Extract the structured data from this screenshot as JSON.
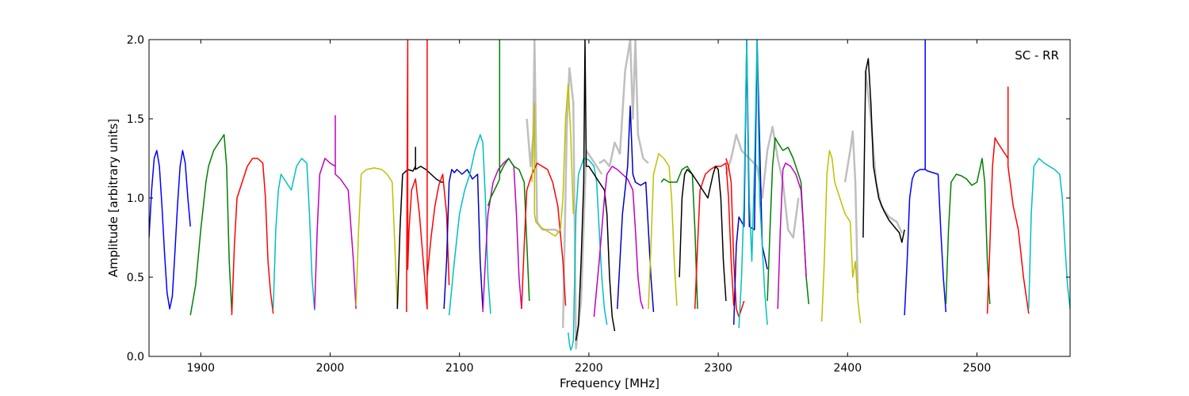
{
  "chart_data": {
    "type": "line",
    "title": "",
    "annotation": "SC - RR",
    "xlabel": "Frequency [MHz]",
    "ylabel": "Amplitude [arbitrary units]",
    "xlim": [
      1860,
      2572
    ],
    "ylim": [
      0,
      2.0
    ],
    "xticks": [
      1900,
      2000,
      2100,
      2200,
      2300,
      2400,
      2500
    ],
    "xtick_labels": [
      "1900",
      "2000",
      "2100",
      "2200",
      "2300",
      "2400",
      "2500"
    ],
    "yticks": [
      0,
      0.5,
      1.0,
      1.5,
      2.0
    ],
    "ytick_labels": [
      "0.0",
      "0.5",
      "1.0",
      "1.5",
      "2.0"
    ],
    "grid": false,
    "legend": "none",
    "background_series_color": "#bfbfbf",
    "background_series": [
      {
        "x": [
          2180,
          2183,
          2185,
          2188,
          2190,
          2194,
          2198,
          2202,
          2206,
          2210
        ],
        "y": [
          0.18,
          1.45,
          1.82,
          1.6,
          0.05,
          0.35,
          1.3,
          1.25,
          1.2,
          1.15
        ]
      },
      {
        "x": [
          2208,
          2212,
          2216,
          2220,
          2224,
          2228,
          2232,
          2234,
          2236,
          2238,
          2242,
          2246
        ],
        "y": [
          1.22,
          1.24,
          1.2,
          1.35,
          1.28,
          1.8,
          2.0,
          1.5,
          2.0,
          1.4,
          1.25,
          1.22
        ]
      },
      {
        "x": [
          2306,
          2310,
          2314,
          2318,
          2324,
          2330,
          2334,
          2338,
          2342,
          2346,
          2350,
          2354,
          2358,
          2362
        ],
        "y": [
          1.15,
          1.25,
          1.4,
          1.3,
          1.25,
          1.2,
          1.0,
          1.3,
          1.45,
          1.25,
          1.1,
          0.8,
          0.75,
          1.0
        ]
      },
      {
        "x": [
          2398,
          2402,
          2404,
          2406,
          2408
        ],
        "y": [
          1.1,
          1.3,
          1.42,
          1.1,
          0.4
        ]
      },
      {
        "x": [
          2414,
          2418,
          2422,
          2426,
          2432,
          2438,
          2442
        ],
        "y": [
          1.8,
          1.5,
          1.1,
          0.95,
          0.88,
          0.85,
          0.78
        ]
      },
      {
        "x": [
          2152,
          2155,
          2157,
          2158,
          2160,
          2164,
          2170,
          2174,
          2178
        ],
        "y": [
          1.5,
          1.2,
          1.4,
          2.0,
          0.85,
          0.8,
          0.8,
          0.8,
          0.78
        ]
      }
    ],
    "series": [
      {
        "color": "#0000ff",
        "x": [
          1860,
          1862,
          1864,
          1866,
          1868,
          1870,
          1872,
          1874,
          1876,
          1878,
          1880,
          1882,
          1884,
          1886,
          1888,
          1890,
          1892
        ],
        "y": [
          0.75,
          1.05,
          1.25,
          1.3,
          1.2,
          0.95,
          0.65,
          0.4,
          0.3,
          0.38,
          0.65,
          0.95,
          1.2,
          1.3,
          1.22,
          1.0,
          0.82
        ]
      },
      {
        "color": "#007f00",
        "x": [
          1892,
          1896,
          1900,
          1904,
          1906,
          1910,
          1914,
          1918,
          1920,
          1922,
          1924
        ],
        "y": [
          0.26,
          0.45,
          0.8,
          1.1,
          1.2,
          1.3,
          1.35,
          1.4,
          1.2,
          0.6,
          0.28
        ]
      },
      {
        "color": "#ff0000",
        "x": [
          1924,
          1926,
          1928,
          1932,
          1936,
          1940,
          1944,
          1948,
          1950,
          1952,
          1954,
          1956
        ],
        "y": [
          0.26,
          0.7,
          1.0,
          1.1,
          1.2,
          1.25,
          1.25,
          1.22,
          1.0,
          0.6,
          0.4,
          0.27
        ]
      },
      {
        "color": "#00bfbf",
        "x": [
          1956,
          1958,
          1960,
          1962,
          1966,
          1970,
          1974,
          1978,
          1982,
          1984,
          1986,
          1988
        ],
        "y": [
          0.3,
          0.8,
          1.05,
          1.15,
          1.1,
          1.05,
          1.2,
          1.25,
          1.22,
          0.9,
          0.5,
          0.29
        ]
      },
      {
        "color": "#bf00bf",
        "x": [
          1988,
          1990,
          1992,
          1996,
          2000,
          2004,
          2004,
          2004,
          2008,
          2014,
          2018,
          2020
        ],
        "y": [
          0.3,
          0.8,
          1.15,
          1.25,
          1.22,
          1.2,
          1.52,
          1.15,
          1.12,
          1.05,
          0.6,
          0.3
        ]
      },
      {
        "color": "#bfbf00",
        "x": [
          2020,
          2022,
          2024,
          2028,
          2034,
          2040,
          2044,
          2048,
          2050,
          2052
        ],
        "y": [
          0.32,
          0.8,
          1.15,
          1.18,
          1.19,
          1.18,
          1.15,
          1.1,
          0.7,
          0.3
        ]
      },
      {
        "color": "#000000",
        "x": [
          2052,
          2054,
          2056,
          2060,
          2064,
          2066,
          2066,
          2066,
          2070,
          2074,
          2078,
          2082,
          2086,
          2088
        ],
        "y": [
          0.3,
          0.8,
          1.15,
          1.18,
          1.17,
          1.2,
          1.32,
          1.18,
          1.2,
          1.18,
          1.15,
          1.12,
          1.1,
          1.1
        ]
      },
      {
        "color": "#ff0000",
        "x": [
          2059,
          2060,
          2060,
          2061,
          2063,
          2066,
          2069,
          2072,
          2075,
          2075,
          2075,
          2078,
          2081,
          2084,
          2087,
          2090,
          2092
        ],
        "y": [
          0.28,
          2.0,
          0.55,
          0.8,
          1.05,
          1.12,
          0.9,
          0.6,
          0.3,
          2.0,
          0.5,
          0.75,
          0.95,
          1.08,
          1.15,
          0.9,
          0.45
        ]
      },
      {
        "color": "#0000bf",
        "x": [
          2088,
          2090,
          2092,
          2094,
          2096,
          2098,
          2102,
          2106,
          2110,
          2114,
          2116,
          2118
        ],
        "y": [
          0.3,
          0.6,
          1.1,
          1.18,
          1.16,
          1.18,
          1.15,
          1.18,
          1.12,
          1.15,
          0.6,
          0.3
        ]
      },
      {
        "color": "#00bfbf",
        "x": [
          2092,
          2096,
          2100,
          2104,
          2108,
          2112,
          2116,
          2118,
          2120,
          2122,
          2124
        ],
        "y": [
          0.26,
          0.6,
          0.9,
          1.05,
          1.15,
          1.3,
          1.4,
          1.35,
          1.0,
          0.5,
          0.27
        ]
      },
      {
        "color": "#bf00bf",
        "x": [
          2118,
          2120,
          2122,
          2126,
          2130,
          2134,
          2138,
          2142,
          2144,
          2146,
          2148
        ],
        "y": [
          0.28,
          0.6,
          0.9,
          1.1,
          1.18,
          1.22,
          1.25,
          1.2,
          0.9,
          0.5,
          0.3
        ]
      },
      {
        "color": "#007f00",
        "x": [
          2122,
          2124,
          2127,
          2130,
          2131,
          2131,
          2131,
          2134,
          2138,
          2142,
          2146,
          2150,
          2154
        ],
        "y": [
          0.95,
          1.0,
          1.05,
          1.1,
          1.12,
          2.0,
          1.15,
          1.2,
          1.25,
          1.2,
          1.18,
          1.1,
          0.35
        ]
      },
      {
        "color": "#ff0000",
        "x": [
          2148,
          2150,
          2152,
          2156,
          2160,
          2164,
          2168,
          2172,
          2176,
          2180,
          2182
        ],
        "y": [
          0.3,
          0.7,
          1.05,
          1.15,
          1.22,
          1.2,
          1.18,
          1.1,
          0.95,
          0.6,
          0.32
        ]
      },
      {
        "color": "#bfbf00",
        "x": [
          2156,
          2158,
          2158,
          2159,
          2162,
          2166,
          2170,
          2174,
          2178,
          2180,
          2182,
          2184,
          2186,
          2188
        ],
        "y": [
          1.1,
          1.6,
          0.9,
          0.85,
          0.82,
          0.8,
          0.78,
          0.76,
          0.8,
          1.0,
          1.5,
          1.72,
          1.4,
          0.9
        ]
      },
      {
        "color": "#00bfbf",
        "x": [
          2184,
          2185,
          2186,
          2187,
          2188,
          2190,
          2192,
          2196,
          2200,
          2204,
          2206,
          2208,
          2210,
          2212,
          2214
        ],
        "y": [
          0.15,
          0.08,
          0.04,
          0.06,
          0.1,
          0.9,
          1.15,
          1.25,
          1.24,
          1.2,
          1.1,
          0.8,
          0.5,
          0.3,
          0.2
        ]
      },
      {
        "color": "#000000",
        "x": [
          2190,
          2192,
          2194,
          2196,
          2197,
          2198,
          2200,
          2204,
          2208,
          2212,
          2214,
          2216,
          2218,
          2220
        ],
        "y": [
          0.1,
          0.2,
          0.6,
          1.1,
          2.0,
          1.2,
          1.2,
          1.15,
          1.1,
          1.05,
          0.9,
          0.5,
          0.25,
          0.16
        ]
      },
      {
        "color": "#bf00bf",
        "x": [
          2204,
          2208,
          2212,
          2214,
          2218,
          2222,
          2226,
          2230,
          2234,
          2236,
          2238,
          2240,
          2242
        ],
        "y": [
          0.25,
          0.6,
          1.0,
          1.15,
          1.2,
          1.18,
          1.15,
          1.12,
          1.05,
          0.8,
          0.5,
          0.35,
          0.3
        ]
      },
      {
        "color": "#0000bf",
        "x": [
          2222,
          2226,
          2230,
          2232,
          2234,
          2236,
          2240,
          2244,
          2246,
          2248,
          2250
        ],
        "y": [
          0.3,
          0.9,
          1.2,
          1.58,
          1.15,
          1.1,
          1.08,
          1.1,
          0.8,
          0.5,
          0.28
        ]
      },
      {
        "color": "#bfbf00",
        "x": [
          2246,
          2248,
          2250,
          2254,
          2258,
          2262,
          2264,
          2266,
          2268
        ],
        "y": [
          0.3,
          0.7,
          1.15,
          1.28,
          1.25,
          1.2,
          1.0,
          0.6,
          0.32
        ]
      },
      {
        "color": "#007f00",
        "x": [
          2256,
          2258,
          2262,
          2266,
          2268,
          2272,
          2276,
          2280,
          2282,
          2284
        ],
        "y": [
          1.1,
          1.12,
          1.1,
          1.1,
          1.1,
          1.18,
          1.2,
          1.15,
          0.8,
          0.3
        ]
      },
      {
        "color": "#ff0000",
        "x": [
          2282,
          2284,
          2286,
          2290,
          2294,
          2298,
          2302,
          2306,
          2308,
          2310,
          2312
        ],
        "y": [
          0.3,
          0.7,
          1.05,
          1.15,
          1.18,
          1.2,
          1.2,
          1.22,
          1.0,
          0.6,
          0.32
        ]
      },
      {
        "color": "#000000",
        "x": [
          2270,
          2272,
          2274,
          2276,
          2280,
          2284,
          2288,
          2292,
          2296,
          2298,
          2300,
          2302,
          2304,
          2306
        ],
        "y": [
          0.5,
          1.0,
          1.15,
          1.18,
          1.15,
          1.1,
          1.05,
          1.0,
          1.15,
          1.2,
          1.18,
          1.0,
          0.6,
          0.35
        ]
      },
      {
        "color": "#ff0000",
        "x": [
          2306,
          2308,
          2310,
          2312,
          2314,
          2316,
          2318,
          2320
        ],
        "y": [
          1.25,
          1.2,
          1.1,
          0.6,
          0.3,
          0.25,
          0.3,
          0.35
        ]
      },
      {
        "color": "#0000bf",
        "x": [
          2312,
          2314,
          2316,
          2318,
          2320,
          2322,
          2324,
          2328,
          2330,
          2334,
          2338
        ],
        "y": [
          0.2,
          0.7,
          0.88,
          0.85,
          0.82,
          2.0,
          0.82,
          0.8,
          2.0,
          0.7,
          0.55
        ]
      },
      {
        "color": "#00bfbf",
        "x": [
          2316,
          2318,
          2320,
          2322,
          2324,
          2326,
          2328,
          2330,
          2332,
          2334,
          2336,
          2338
        ],
        "y": [
          0.18,
          0.5,
          1.0,
          2.0,
          1.0,
          0.6,
          1.2,
          2.0,
          1.0,
          0.7,
          0.4,
          0.2
        ]
      },
      {
        "color": "#007f00",
        "x": [
          2338,
          2340,
          2342,
          2344,
          2346,
          2350,
          2354,
          2358,
          2362,
          2364,
          2366,
          2368,
          2370
        ],
        "y": [
          0.35,
          0.8,
          1.2,
          1.38,
          1.35,
          1.3,
          1.32,
          1.25,
          1.15,
          1.1,
          0.8,
          0.5,
          0.33
        ]
      },
      {
        "color": "#bf00bf",
        "x": [
          2346,
          2348,
          2350,
          2352,
          2356,
          2360,
          2364,
          2366,
          2368
        ],
        "y": [
          0.3,
          0.8,
          1.18,
          1.22,
          1.2,
          1.15,
          1.05,
          0.8,
          0.5
        ]
      },
      {
        "color": "#bfbf00",
        "x": [
          2380,
          2382,
          2384,
          2386,
          2388,
          2390,
          2394,
          2398,
          2402,
          2404,
          2406,
          2408,
          2410
        ],
        "y": [
          0.22,
          0.6,
          1.15,
          1.3,
          1.25,
          1.1,
          1.0,
          0.9,
          0.85,
          0.5,
          0.6,
          0.35,
          0.21
        ]
      },
      {
        "color": "#000000",
        "x": [
          2412,
          2414,
          2416,
          2418,
          2420,
          2424,
          2428,
          2432,
          2436,
          2440,
          2442,
          2444
        ],
        "y": [
          0.75,
          1.8,
          1.88,
          1.6,
          1.2,
          1.0,
          0.92,
          0.86,
          0.82,
          0.78,
          0.72,
          0.8
        ]
      },
      {
        "color": "#0000ff",
        "x": [
          2444,
          2446,
          2448,
          2450,
          2452,
          2456,
          2458,
          2460,
          2460,
          2460,
          2462,
          2466,
          2470,
          2472,
          2474,
          2476
        ],
        "y": [
          0.26,
          0.6,
          1.0,
          1.12,
          1.16,
          1.18,
          1.18,
          1.18,
          2.0,
          1.18,
          1.17,
          1.16,
          1.15,
          0.8,
          0.5,
          0.28
        ]
      },
      {
        "color": "#007f00",
        "x": [
          2476,
          2478,
          2480,
          2484,
          2488,
          2492,
          2496,
          2500,
          2504,
          2506,
          2508,
          2510
        ],
        "y": [
          0.33,
          0.8,
          1.1,
          1.15,
          1.14,
          1.12,
          1.08,
          1.1,
          1.25,
          1.1,
          0.6,
          0.33
        ]
      },
      {
        "color": "#ff0000",
        "x": [
          2508,
          2510,
          2512,
          2514,
          2516,
          2520,
          2524,
          2524,
          2524,
          2528,
          2532,
          2536,
          2540
        ],
        "y": [
          0.27,
          0.7,
          1.2,
          1.38,
          1.35,
          1.3,
          1.25,
          1.7,
          1.2,
          0.95,
          0.8,
          0.5,
          0.27
        ]
      },
      {
        "color": "#00bfbf",
        "x": [
          2540,
          2542,
          2544,
          2548,
          2552,
          2556,
          2560,
          2564,
          2566,
          2568,
          2570,
          2572
        ],
        "y": [
          0.3,
          0.9,
          1.2,
          1.25,
          1.22,
          1.2,
          1.18,
          1.15,
          1.0,
          0.7,
          0.45,
          0.3
        ]
      }
    ]
  }
}
